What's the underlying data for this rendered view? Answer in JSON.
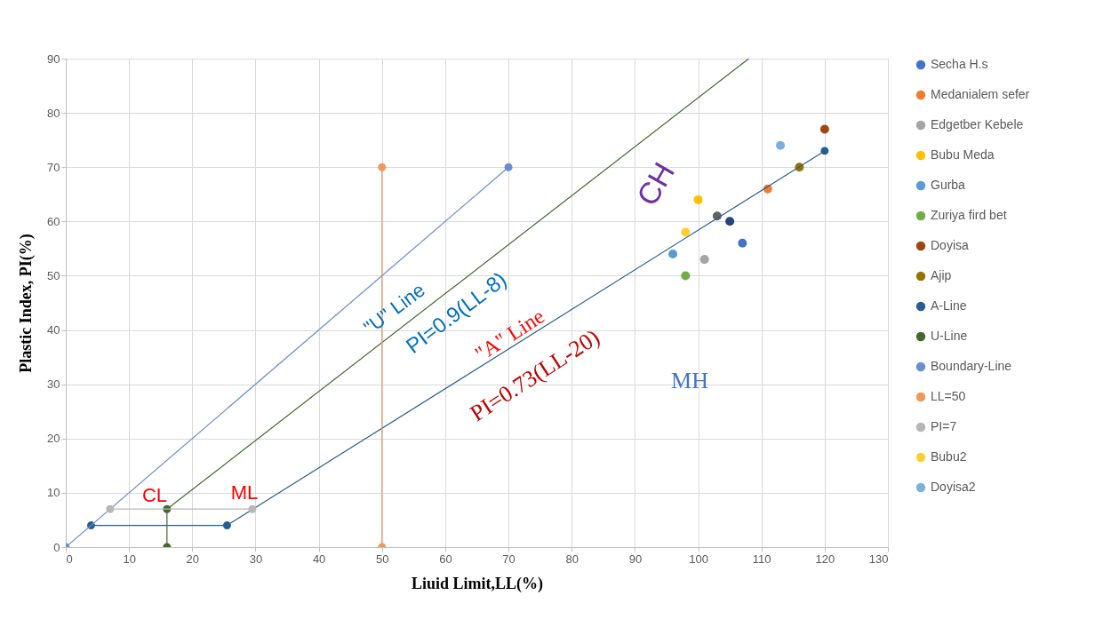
{
  "chart_data": {
    "type": "scatter",
    "xlabel": "Liuid Limit,LL(%)",
    "ylabel": "Plastic Index, PI(%)",
    "xlim": [
      0,
      130
    ],
    "ylim": [
      0,
      90
    ],
    "xticks": [
      0,
      10,
      20,
      30,
      40,
      50,
      60,
      70,
      80,
      90,
      100,
      110,
      120,
      130
    ],
    "yticks": [
      0,
      10,
      20,
      30,
      40,
      50,
      60,
      70,
      80,
      90
    ],
    "grid": true,
    "legend": "right",
    "marker": "circle",
    "series": [
      {
        "name": "Secha H.s",
        "color": "#4472c4",
        "x": [
          107
        ],
        "values": [
          56
        ]
      },
      {
        "name": "Medanialem sefer",
        "color": "#ed7d31",
        "x": [
          111
        ],
        "values": [
          66
        ]
      },
      {
        "name": "Edgetber Kebele",
        "color": "#a5a5a5",
        "x": [
          101
        ],
        "values": [
          53
        ]
      },
      {
        "name": "Bubu Meda",
        "color": "#ffc000",
        "x": [
          100
        ],
        "values": [
          64
        ]
      },
      {
        "name": "Gurba",
        "color": "#5b9bd5",
        "x": [
          96
        ],
        "values": [
          54
        ]
      },
      {
        "name": "Zuriya fird bet",
        "color": "#70ad47",
        "x": [
          98
        ],
        "values": [
          50
        ]
      },
      {
        "color": "#264478",
        "x": [
          105
        ],
        "values": [
          60
        ]
      },
      {
        "name": "Doyisa",
        "color": "#9e480e",
        "x": [
          120
        ],
        "values": [
          77
        ]
      },
      {
        "color": "#636363",
        "x": [
          103
        ],
        "values": [
          61
        ]
      },
      {
        "name": "Ajip",
        "color": "#997300",
        "x": [
          116
        ],
        "values": [
          70
        ]
      },
      {
        "name": " A-Line",
        "type": "line",
        "color": "#255e91",
        "x": [
          4,
          25.5,
          120
        ],
        "values": [
          4,
          4,
          73
        ]
      },
      {
        "name": "U-Line",
        "type": "line",
        "color": "#43682b",
        "x": [
          16,
          16,
          108
        ],
        "values": [
          0,
          7,
          90
        ]
      },
      {
        "name": "Boundary-Line",
        "type": "line",
        "color": "#698ed0",
        "x": [
          0,
          70
        ],
        "values": [
          0,
          70
        ]
      },
      {
        "name": "LL=50",
        "type": "line",
        "color": "#f1975a",
        "x": [
          50,
          50
        ],
        "values": [
          0,
          70
        ]
      },
      {
        "name": "PI=7",
        "type": "line",
        "color": "#b7b7b7",
        "x": [
          7,
          29.5
        ],
        "values": [
          7,
          7
        ]
      },
      {
        "name": "Bubu2",
        "color": "#ffcd33",
        "x": [
          98
        ],
        "values": [
          58
        ]
      },
      {
        "name": "Doyisa2",
        "color": "#7cafdd",
        "x": [
          113
        ],
        "values": [
          74
        ]
      }
    ],
    "annotations": [
      "CL",
      "ML",
      "CH",
      "MH",
      "\"U\" Line",
      "PI=0.9(LL-8)",
      "\"A\" Line",
      "PI=0.73(LL-20)"
    ]
  }
}
